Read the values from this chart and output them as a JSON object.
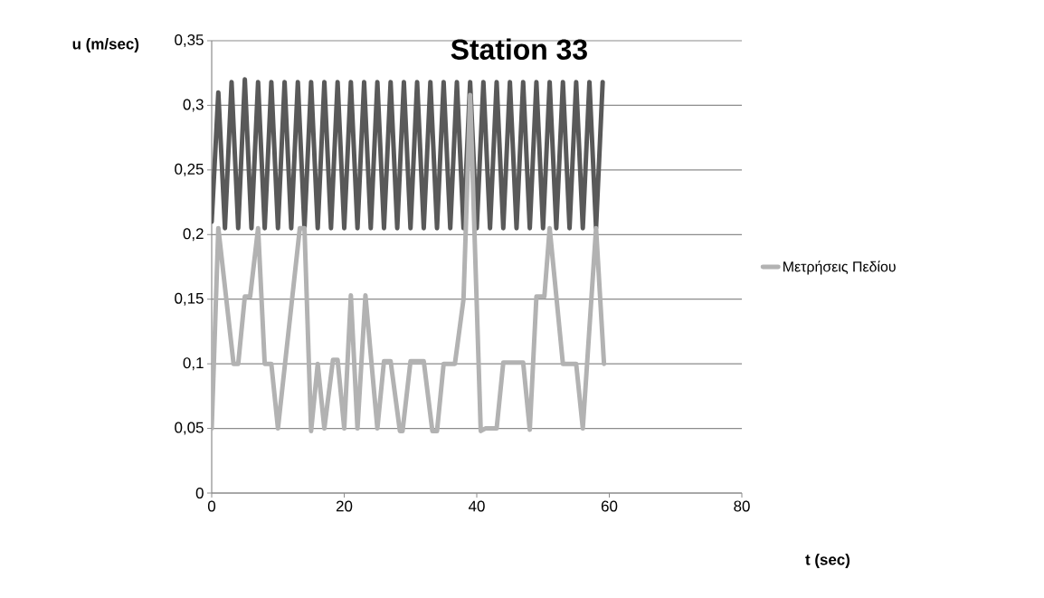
{
  "chart_data": {
    "type": "line",
    "title": "Station 33",
    "xlabel": "t (sec)",
    "ylabel": "u (m/sec)",
    "xlim": [
      0,
      80
    ],
    "xticks": [
      0,
      20,
      40,
      60,
      80
    ],
    "ylim": [
      0,
      0.35
    ],
    "yticks": [
      {
        "value": 0,
        "label": "0"
      },
      {
        "value": 0.05,
        "label": "0,05"
      },
      {
        "value": 0.1,
        "label": "0,1"
      },
      {
        "value": 0.15,
        "label": "0,15"
      },
      {
        "value": 0.2,
        "label": "0,2"
      },
      {
        "value": 0.25,
        "label": "0,25"
      },
      {
        "value": 0.3,
        "label": "0,3"
      },
      {
        "value": 0.35,
        "label": "0,35"
      }
    ],
    "grid": "y",
    "legend": "right",
    "series": [
      {
        "color": "#595959",
        "x": [
          0,
          1,
          2,
          3,
          4,
          5,
          6,
          7,
          8,
          9,
          10,
          11,
          12,
          13,
          14,
          15,
          16,
          17,
          18,
          19,
          20,
          21,
          22,
          23,
          24,
          25,
          26,
          27,
          28,
          29,
          30,
          31,
          32,
          33,
          34,
          35,
          36,
          37,
          38,
          39,
          40,
          41,
          42,
          43,
          44,
          45,
          46,
          47,
          48,
          49,
          50,
          51,
          52,
          53,
          54,
          55,
          56,
          57,
          58,
          59
        ],
        "values": [
          0.21,
          0.31,
          0.205,
          0.318,
          0.205,
          0.32,
          0.205,
          0.318,
          0.205,
          0.318,
          0.205,
          0.318,
          0.205,
          0.318,
          0.205,
          0.318,
          0.205,
          0.318,
          0.205,
          0.318,
          0.205,
          0.318,
          0.205,
          0.318,
          0.205,
          0.318,
          0.205,
          0.318,
          0.205,
          0.318,
          0.205,
          0.318,
          0.205,
          0.318,
          0.205,
          0.318,
          0.205,
          0.318,
          0.205,
          0.318,
          0.205,
          0.318,
          0.205,
          0.318,
          0.205,
          0.318,
          0.205,
          0.318,
          0.205,
          0.318,
          0.205,
          0.318,
          0.205,
          0.318,
          0.205,
          0.318,
          0.205,
          0.318,
          0.205,
          0.318
        ]
      },
      {
        "name": "Μετρήσεις Πεδίου",
        "color": "#b2b2b2",
        "x": [
          0,
          1,
          3.3,
          4,
          5,
          5.8,
          7,
          8,
          9,
          10,
          13.3,
          14,
          15,
          16,
          17,
          18.3,
          19,
          20,
          21,
          22,
          23.2,
          25,
          26,
          27,
          28.4,
          28.8,
          30,
          32,
          33.3,
          34,
          35,
          36.7,
          38,
          39,
          40.6,
          41.3,
          43,
          44,
          47,
          48,
          49,
          50.2,
          51,
          53,
          55,
          56,
          58,
          59.2
        ],
        "values": [
          0.05,
          0.205,
          0.1,
          0.1,
          0.152,
          0.152,
          0.205,
          0.1,
          0.1,
          0.05,
          0.205,
          0.205,
          0.048,
          0.1,
          0.05,
          0.103,
          0.103,
          0.05,
          0.153,
          0.05,
          0.153,
          0.05,
          0.102,
          0.102,
          0.048,
          0.048,
          0.102,
          0.102,
          0.048,
          0.048,
          0.1,
          0.1,
          0.15,
          0.308,
          0.048,
          0.05,
          0.05,
          0.101,
          0.101,
          0.049,
          0.152,
          0.152,
          0.205,
          0.1,
          0.1,
          0.05,
          0.205,
          0.1
        ]
      }
    ]
  }
}
